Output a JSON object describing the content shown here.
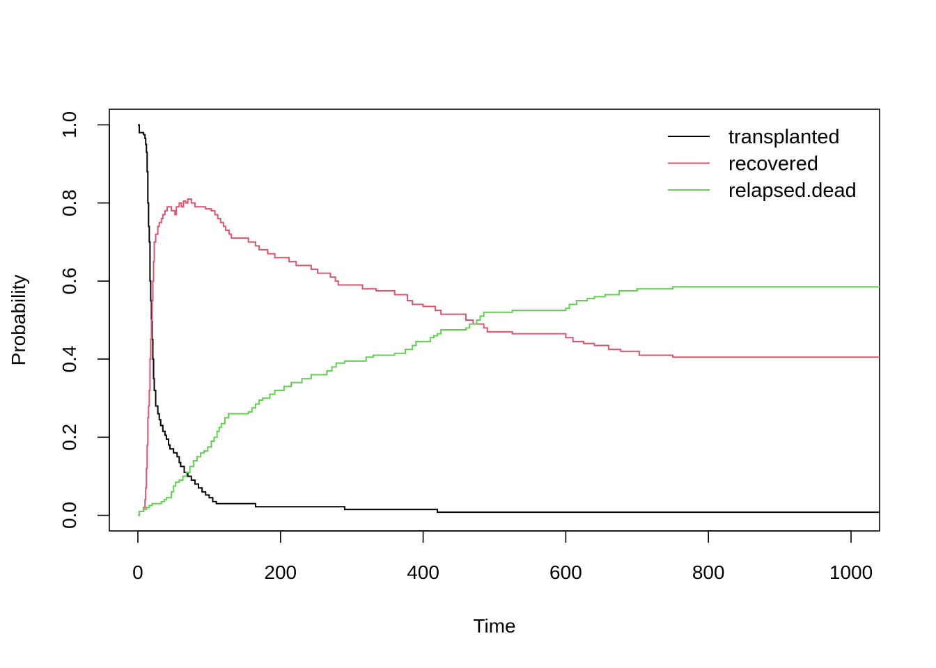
{
  "chart_data": {
    "type": "line",
    "step": true,
    "title": "",
    "xlabel": "Time",
    "ylabel": "Probability",
    "xlim": [
      -40,
      1040
    ],
    "ylim": [
      -0.04,
      1.04
    ],
    "xticks": [
      0,
      200,
      400,
      600,
      800,
      1000
    ],
    "yticks": [
      0.0,
      0.2,
      0.4,
      0.6,
      0.8,
      1.0
    ],
    "xtick_labels": [
      "0",
      "200",
      "400",
      "600",
      "800",
      "1000"
    ],
    "ytick_labels": [
      "0.0",
      "0.2",
      "0.4",
      "0.6",
      "0.8",
      "1.0"
    ],
    "legend_position": "top-right",
    "grid": false,
    "series": [
      {
        "name": "transplanted",
        "color": "#000000",
        "points": [
          [
            0,
            1.0
          ],
          [
            2,
            0.98
          ],
          [
            8,
            0.975
          ],
          [
            10,
            0.965
          ],
          [
            11,
            0.95
          ],
          [
            12,
            0.93
          ],
          [
            13,
            0.88
          ],
          [
            14,
            0.8
          ],
          [
            15,
            0.74
          ],
          [
            16,
            0.7
          ],
          [
            17,
            0.6
          ],
          [
            18,
            0.55
          ],
          [
            19,
            0.5
          ],
          [
            20,
            0.45
          ],
          [
            21,
            0.4
          ],
          [
            22,
            0.35
          ],
          [
            23,
            0.32
          ],
          [
            25,
            0.28
          ],
          [
            28,
            0.26
          ],
          [
            30,
            0.245
          ],
          [
            32,
            0.23
          ],
          [
            35,
            0.215
          ],
          [
            38,
            0.205
          ],
          [
            40,
            0.195
          ],
          [
            43,
            0.18
          ],
          [
            45,
            0.17
          ],
          [
            50,
            0.16
          ],
          [
            55,
            0.15
          ],
          [
            58,
            0.135
          ],
          [
            60,
            0.125
          ],
          [
            65,
            0.11
          ],
          [
            70,
            0.1
          ],
          [
            75,
            0.09
          ],
          [
            80,
            0.08
          ],
          [
            85,
            0.07
          ],
          [
            90,
            0.06
          ],
          [
            95,
            0.052
          ],
          [
            100,
            0.045
          ],
          [
            105,
            0.035
          ],
          [
            110,
            0.03
          ],
          [
            165,
            0.022
          ],
          [
            290,
            0.015
          ],
          [
            420,
            0.008
          ],
          [
            1040,
            0.008
          ]
        ]
      },
      {
        "name": "recovered",
        "color": "#DF536B",
        "points": [
          [
            0,
            0.0
          ],
          [
            2,
            0.01
          ],
          [
            8,
            0.02
          ],
          [
            10,
            0.04
          ],
          [
            11,
            0.07
          ],
          [
            12,
            0.12
          ],
          [
            13,
            0.18
          ],
          [
            14,
            0.25
          ],
          [
            15,
            0.28
          ],
          [
            16,
            0.32
          ],
          [
            17,
            0.4
          ],
          [
            18,
            0.45
          ],
          [
            19,
            0.5
          ],
          [
            20,
            0.55
          ],
          [
            21,
            0.6
          ],
          [
            22,
            0.65
          ],
          [
            23,
            0.7
          ],
          [
            25,
            0.72
          ],
          [
            28,
            0.74
          ],
          [
            30,
            0.75
          ],
          [
            33,
            0.76
          ],
          [
            35,
            0.77
          ],
          [
            38,
            0.78
          ],
          [
            41,
            0.79
          ],
          [
            47,
            0.78
          ],
          [
            52,
            0.77
          ],
          [
            54,
            0.79
          ],
          [
            58,
            0.8
          ],
          [
            61,
            0.79
          ],
          [
            64,
            0.805
          ],
          [
            67,
            0.8
          ],
          [
            70,
            0.81
          ],
          [
            75,
            0.8
          ],
          [
            80,
            0.79
          ],
          [
            95,
            0.785
          ],
          [
            103,
            0.78
          ],
          [
            108,
            0.77
          ],
          [
            112,
            0.76
          ],
          [
            116,
            0.75
          ],
          [
            120,
            0.74
          ],
          [
            123,
            0.73
          ],
          [
            128,
            0.72
          ],
          [
            131,
            0.71
          ],
          [
            155,
            0.7
          ],
          [
            165,
            0.69
          ],
          [
            170,
            0.68
          ],
          [
            182,
            0.67
          ],
          [
            192,
            0.66
          ],
          [
            212,
            0.65
          ],
          [
            222,
            0.64
          ],
          [
            243,
            0.63
          ],
          [
            252,
            0.62
          ],
          [
            270,
            0.61
          ],
          [
            277,
            0.6
          ],
          [
            281,
            0.59
          ],
          [
            315,
            0.58
          ],
          [
            334,
            0.575
          ],
          [
            360,
            0.565
          ],
          [
            378,
            0.55
          ],
          [
            385,
            0.54
          ],
          [
            400,
            0.535
          ],
          [
            417,
            0.525
          ],
          [
            425,
            0.515
          ],
          [
            460,
            0.5
          ],
          [
            470,
            0.49
          ],
          [
            485,
            0.48
          ],
          [
            490,
            0.47
          ],
          [
            525,
            0.465
          ],
          [
            600,
            0.455
          ],
          [
            610,
            0.445
          ],
          [
            625,
            0.44
          ],
          [
            640,
            0.435
          ],
          [
            660,
            0.425
          ],
          [
            677,
            0.42
          ],
          [
            703,
            0.41
          ],
          [
            750,
            0.405
          ],
          [
            1040,
            0.405
          ]
        ]
      },
      {
        "name": "relapsed.dead",
        "color": "#61D04F",
        "points": [
          [
            0,
            0.0
          ],
          [
            2,
            0.01
          ],
          [
            8,
            0.015
          ],
          [
            12,
            0.02
          ],
          [
            16,
            0.025
          ],
          [
            20,
            0.03
          ],
          [
            33,
            0.035
          ],
          [
            37,
            0.04
          ],
          [
            40,
            0.045
          ],
          [
            47,
            0.06
          ],
          [
            50,
            0.075
          ],
          [
            53,
            0.085
          ],
          [
            58,
            0.09
          ],
          [
            63,
            0.1
          ],
          [
            68,
            0.11
          ],
          [
            73,
            0.125
          ],
          [
            78,
            0.14
          ],
          [
            83,
            0.15
          ],
          [
            88,
            0.16
          ],
          [
            93,
            0.165
          ],
          [
            98,
            0.175
          ],
          [
            103,
            0.19
          ],
          [
            107,
            0.2
          ],
          [
            111,
            0.215
          ],
          [
            114,
            0.225
          ],
          [
            117,
            0.235
          ],
          [
            122,
            0.25
          ],
          [
            127,
            0.26
          ],
          [
            155,
            0.265
          ],
          [
            160,
            0.275
          ],
          [
            165,
            0.285
          ],
          [
            170,
            0.295
          ],
          [
            175,
            0.3
          ],
          [
            185,
            0.31
          ],
          [
            192,
            0.32
          ],
          [
            205,
            0.33
          ],
          [
            215,
            0.34
          ],
          [
            230,
            0.35
          ],
          [
            243,
            0.36
          ],
          [
            265,
            0.37
          ],
          [
            272,
            0.38
          ],
          [
            278,
            0.39
          ],
          [
            290,
            0.395
          ],
          [
            320,
            0.405
          ],
          [
            330,
            0.41
          ],
          [
            360,
            0.415
          ],
          [
            375,
            0.425
          ],
          [
            385,
            0.435
          ],
          [
            390,
            0.445
          ],
          [
            410,
            0.455
          ],
          [
            415,
            0.46
          ],
          [
            420,
            0.465
          ],
          [
            425,
            0.475
          ],
          [
            460,
            0.48
          ],
          [
            465,
            0.49
          ],
          [
            475,
            0.5
          ],
          [
            480,
            0.51
          ],
          [
            485,
            0.52
          ],
          [
            525,
            0.525
          ],
          [
            600,
            0.53
          ],
          [
            605,
            0.54
          ],
          [
            615,
            0.55
          ],
          [
            630,
            0.555
          ],
          [
            640,
            0.56
          ],
          [
            655,
            0.565
          ],
          [
            675,
            0.575
          ],
          [
            700,
            0.58
          ],
          [
            750,
            0.585
          ],
          [
            1040,
            0.585
          ]
        ]
      }
    ]
  }
}
